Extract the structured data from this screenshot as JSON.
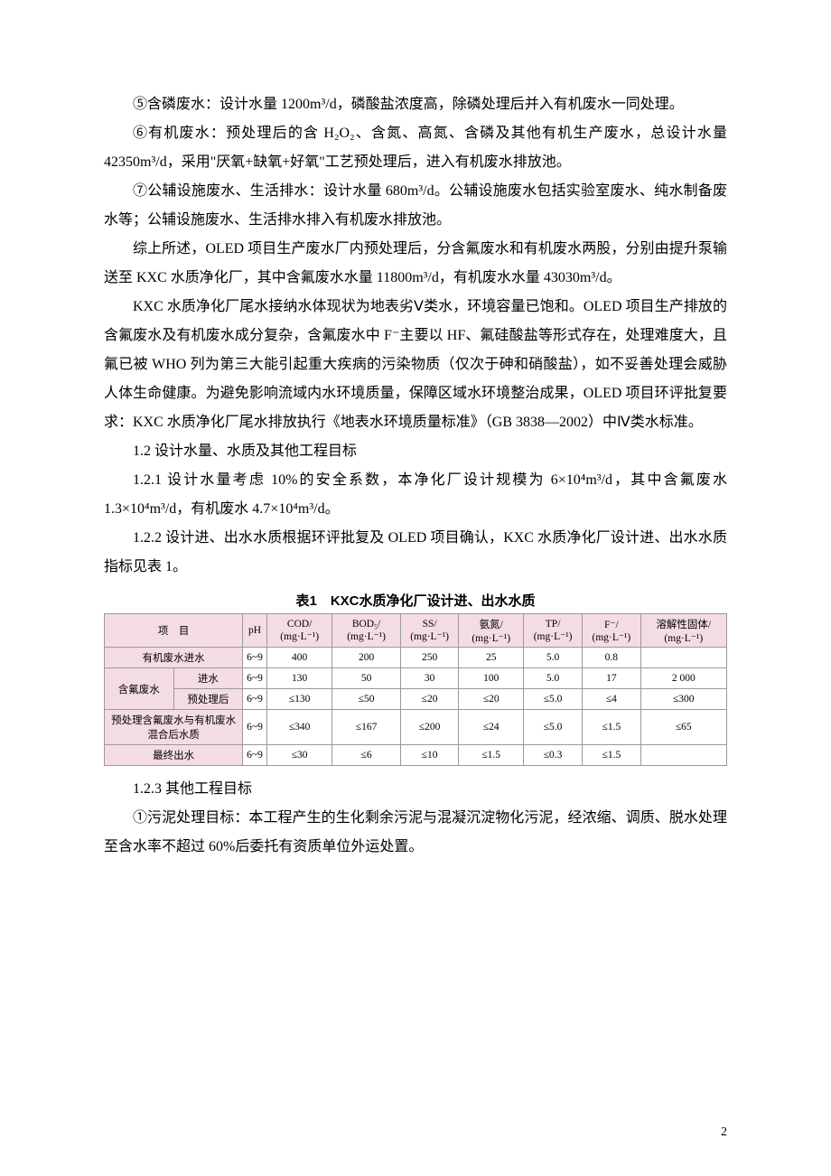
{
  "paragraphs": {
    "p1": "⑤含磷废水：设计水量 1200m³/d，磷酸盐浓度高，除磷处理后并入有机废水一同处理。",
    "p2": "⑥有机废水：预处理后的含 H₂O₂、含氮、高氮、含磷及其他有机生产废水，总设计水量 42350m³/d，采用\"厌氧+缺氧+好氧\"工艺预处理后，进入有机废水排放池。",
    "p3": "⑦公辅设施废水、生活排水：设计水量 680m³/d。公辅设施废水包括实验室废水、纯水制备废水等；公辅设施废水、生活排水排入有机废水排放池。",
    "p4": "综上所述，OLED 项目生产废水厂内预处理后，分含氟废水和有机废水两股，分别由提升泵输送至 KXC 水质净化厂，其中含氟废水水量 11800m³/d，有机废水水量 43030m³/d。",
    "p5": "KXC 水质净化厂尾水接纳水体现状为地表劣Ⅴ类水，环境容量已饱和。OLED 项目生产排放的含氟废水及有机废水成分复杂，含氟废水中 F⁻主要以 HF、氟硅酸盐等形式存在，处理难度大，且氟已被 WHO 列为第三大能引起重大疾病的污染物质（仅次于砷和硝酸盐），如不妥善处理会威胁人体生命健康。为避免影响流域内水环境质量，保障区域水环境整治成果，OLED 项目环评批复要求：KXC 水质净化厂尾水排放执行《地表水环境质量标准》（GB 3838—2002）中Ⅳ类水标准。",
    "h1": "1.2 设计水量、水质及其他工程目标",
    "p6": "1.2.1 设计水量考虑 10%的安全系数，本净化厂设计规模为 6×10⁴m³/d，其中含氟废水 1.3×10⁴m³/d，有机废水 4.7×10⁴m³/d。",
    "p7": "1.2.2 设计进、出水水质根据环评批复及 OLED 项目确认，KXC 水质净化厂设计进、出水水质指标见表 1。",
    "h2": "1.2.3 其他工程目标",
    "p8": "①污泥处理目标：本工程产生的生化剩余污泥与混凝沉淀物化污泥，经浓缩、调质、脱水处理至含水率不超过 60%后委托有资质单位外运处置。"
  },
  "table": {
    "caption": "表1　KXC水质净化厂设计进、出水水质",
    "headers": [
      "项　目",
      "pH",
      "COD/\n(mg·L⁻¹)",
      "BOD₅/\n(mg·L⁻¹)",
      "SS/\n(mg·L⁻¹)",
      "氨氮/\n(mg·L⁻¹)",
      "TP/\n(mg·L⁻¹)",
      "F⁻/\n(mg·L⁻¹)",
      "溶解性固体/\n(mg·L⁻¹)"
    ],
    "rows": [
      {
        "label1": "有机废水进水",
        "label2": "",
        "cells": [
          "6~9",
          "400",
          "200",
          "250",
          "25",
          "5.0",
          "0.8",
          ""
        ]
      },
      {
        "label1": "含氟废水",
        "label2": "进水",
        "cells": [
          "6~9",
          "130",
          "50",
          "30",
          "100",
          "5.0",
          "17",
          "2 000"
        ]
      },
      {
        "label1": "",
        "label2": "预处理后",
        "cells": [
          "6~9",
          "≤130",
          "≤50",
          "≤20",
          "≤20",
          "≤5.0",
          "≤4",
          "≤300"
        ]
      },
      {
        "label1": "预处理含氟废水与有机废水混合后水质",
        "label2": "",
        "cells": [
          "6~9",
          "≤340",
          "≤167",
          "≤200",
          "≤24",
          "≤5.0",
          "≤1.5",
          "≤65"
        ]
      },
      {
        "label1": "最终出水",
        "label2": "",
        "cells": [
          "6~9",
          "≤30",
          "≤6",
          "≤10",
          "≤1.5",
          "≤0.3",
          "≤1.5",
          ""
        ]
      }
    ]
  },
  "pageNumber": "2",
  "colors": {
    "tableHeaderBg": "#f4dce4",
    "tableBorder": "#999999",
    "text": "#000000",
    "background": "#ffffff"
  }
}
